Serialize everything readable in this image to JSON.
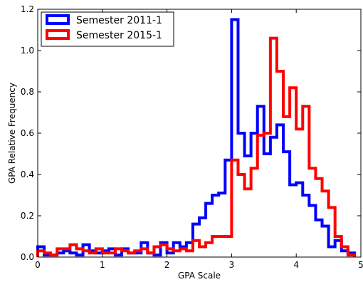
{
  "chart_data": {
    "type": "histogram",
    "xlabel": "GPA Scale",
    "ylabel": "GPA Relative Frequency",
    "xlim": [
      0,
      5
    ],
    "ylim": [
      0,
      1.2
    ],
    "xticks": [
      "0",
      "1",
      "2",
      "3",
      "4",
      "5"
    ],
    "yticks": [
      "0.0",
      "0.2",
      "0.4",
      "0.6",
      "0.8",
      "1.0",
      "1.2"
    ],
    "grid": false,
    "legend_position": "top-left",
    "bin_width": 0.1,
    "series": [
      {
        "name": "Semester 2011-1",
        "color": "#0000ff",
        "bin_starts": [
          0,
          0.1,
          0.2,
          0.3,
          0.4,
          0.5,
          0.6,
          0.7,
          0.8,
          0.9,
          1.0,
          1.1,
          1.2,
          1.3,
          1.4,
          1.5,
          1.6,
          1.7,
          1.8,
          1.9,
          2.0,
          2.1,
          2.2,
          2.3,
          2.4,
          2.5,
          2.6,
          2.7,
          2.8,
          2.9,
          3.0,
          3.1,
          3.2,
          3.3,
          3.4,
          3.5,
          3.6,
          3.7,
          3.8,
          3.9,
          4.0,
          4.1,
          4.2,
          4.3,
          4.4,
          4.5,
          4.6,
          4.7,
          4.8
        ],
        "values": [
          0.05,
          0.01,
          0.01,
          0.02,
          0.03,
          0.02,
          0.01,
          0.06,
          0.03,
          0.02,
          0.03,
          0.04,
          0.01,
          0.04,
          0.02,
          0.02,
          0.07,
          0.02,
          0.01,
          0.07,
          0.02,
          0.07,
          0.05,
          0.07,
          0.16,
          0.19,
          0.26,
          0.3,
          0.31,
          0.47,
          1.15,
          0.6,
          0.49,
          0.6,
          0.73,
          0.5,
          0.58,
          0.64,
          0.51,
          0.35,
          0.36,
          0.3,
          0.25,
          0.18,
          0.15,
          0.05,
          0.08,
          0.03,
          0.02
        ]
      },
      {
        "name": "Semester 2015-1",
        "color": "#ff0000",
        "bin_starts": [
          0,
          0.1,
          0.2,
          0.3,
          0.4,
          0.5,
          0.6,
          0.7,
          0.8,
          0.9,
          1.0,
          1.1,
          1.2,
          1.3,
          1.4,
          1.5,
          1.6,
          1.7,
          1.8,
          1.9,
          2.0,
          2.1,
          2.2,
          2.3,
          2.4,
          2.5,
          2.6,
          2.7,
          2.8,
          2.9,
          3.0,
          3.1,
          3.2,
          3.3,
          3.4,
          3.5,
          3.6,
          3.7,
          3.8,
          3.9,
          4.0,
          4.1,
          4.2,
          4.3,
          4.4,
          4.5,
          4.6,
          4.7,
          4.8
        ],
        "values": [
          0.03,
          0.02,
          0.01,
          0.04,
          0.04,
          0.06,
          0.04,
          0.03,
          0.02,
          0.04,
          0.02,
          0.02,
          0.04,
          0.03,
          0.02,
          0.03,
          0.04,
          0.02,
          0.05,
          0.06,
          0.04,
          0.03,
          0.04,
          0.03,
          0.08,
          0.05,
          0.07,
          0.1,
          0.1,
          0.1,
          0.47,
          0.4,
          0.33,
          0.43,
          0.59,
          0.6,
          1.06,
          0.9,
          0.68,
          0.82,
          0.62,
          0.73,
          0.43,
          0.38,
          0.32,
          0.24,
          0.1,
          0.05,
          0.01
        ]
      }
    ]
  }
}
